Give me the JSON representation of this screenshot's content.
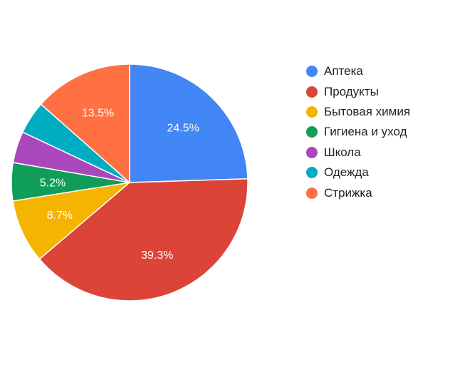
{
  "chart_data": {
    "type": "pie",
    "title": "",
    "legend_position": "right",
    "start_angle_deg": 0,
    "direction": "clockwise",
    "categories": [
      "Аптека",
      "Продукты",
      "Бытовая химия",
      "Гигиена и уход",
      "Школа",
      "Одежда",
      "Стрижка"
    ],
    "values": [
      24.5,
      39.3,
      8.7,
      5.2,
      4.3,
      4.5,
      13.5
    ],
    "units": "%",
    "colors": [
      "#4285f4",
      "#db4437",
      "#f4b400",
      "#0f9d58",
      "#ab47bc",
      "#00acc1",
      "#ff7043"
    ],
    "data_labels": [
      "24.5%",
      "39.3%",
      "8.7%",
      "5.2%",
      "",
      "",
      "13.5%"
    ]
  }
}
